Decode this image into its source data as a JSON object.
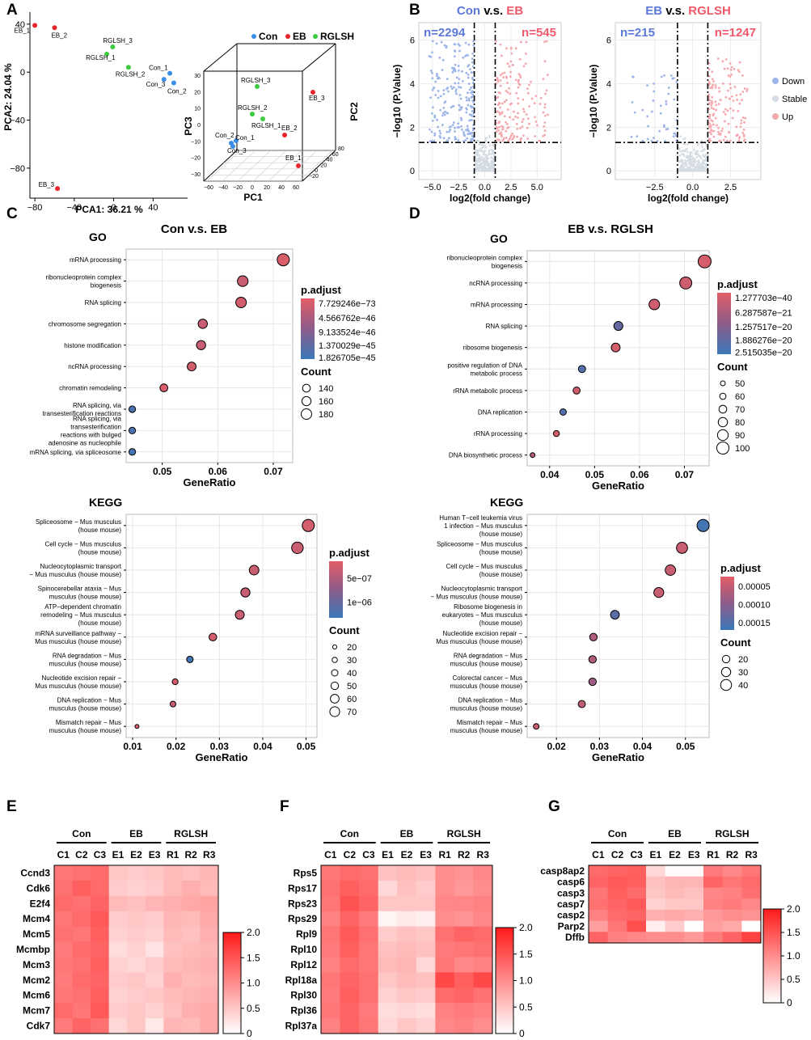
{
  "panel_labels": [
    "A",
    "B",
    "C",
    "D",
    "E",
    "F",
    "G"
  ],
  "chart_data": [
    {
      "id": "pca2d",
      "type": "scatter",
      "title": "",
      "xlabel": "PCA1: 36.21 %",
      "ylabel": "PCA2: 24.04 %",
      "xticks": [
        -80,
        -40,
        0,
        40
      ],
      "yticks": [
        40,
        0,
        -40,
        -80
      ],
      "xlim": [
        -85,
        75
      ],
      "ylim": [
        -105,
        50
      ],
      "points": [
        {
          "label": "EB_1",
          "x": -80,
          "y": 39,
          "group": "EB"
        },
        {
          "label": "EB_2",
          "x": -60,
          "y": 37,
          "group": "EB"
        },
        {
          "label": "EB_3",
          "x": -57,
          "y": -97,
          "group": "EB"
        },
        {
          "label": "RGLSH_3",
          "x": -1,
          "y": 21,
          "group": "RGLSH"
        },
        {
          "label": "RGLSH_1",
          "x": -7,
          "y": 15,
          "group": "RGLSH"
        },
        {
          "label": "RGLSH_2",
          "x": 15,
          "y": 4,
          "group": "RGLSH"
        },
        {
          "label": "Con_1",
          "x": 57,
          "y": -1,
          "group": "Con"
        },
        {
          "label": "Con_3",
          "x": 51,
          "y": -6,
          "group": "Con"
        },
        {
          "label": "Con_2",
          "x": 61,
          "y": -9,
          "group": "Con"
        }
      ]
    },
    {
      "id": "pca3d",
      "type": "scatter",
      "title": "",
      "axis_labels": [
        "PC1",
        "PC2",
        "PC3"
      ],
      "pc1_ticks": [
        "−60",
        "−40",
        "−20",
        "0",
        "20",
        "40",
        "60"
      ],
      "pc3_ticks": [
        "30",
        "20",
        "10",
        "0",
        "−10",
        "−20",
        "−30"
      ],
      "pc2_ticks": [
        "80",
        "60",
        "40",
        "20",
        "0",
        "−20"
      ],
      "legend": [
        {
          "name": "Con",
          "color": "#3a8ee6"
        },
        {
          "name": "EB",
          "color": "#e8262d"
        },
        {
          "name": "RGLSH",
          "color": "#3ec93e"
        }
      ],
      "points": [
        {
          "label": "RGLSH_3",
          "group": "RGLSH"
        },
        {
          "label": "EB_3",
          "group": "EB"
        },
        {
          "label": "RGLSH_2",
          "group": "RGLSH"
        },
        {
          "label": "RGLSH_1",
          "group": "RGLSH"
        },
        {
          "label": "EB_2",
          "group": "EB"
        },
        {
          "label": "Con_2",
          "group": "Con"
        },
        {
          "label": "Con_1",
          "group": "Con"
        },
        {
          "label": "Con_3",
          "group": "Con"
        },
        {
          "label": "EB_1",
          "group": "EB"
        }
      ]
    },
    {
      "id": "volcano1",
      "type": "scatter",
      "title_a": "Con",
      "title_mid": " v.s. ",
      "title_b": "EB",
      "xlabel": "log2(fold change)",
      "ylabel": "−log10 (P.Value)",
      "xticks": [
        "−5.0",
        "−2.5",
        "0.0",
        "2.5",
        "5.0"
      ],
      "yticks": [
        "0",
        "2",
        "4",
        "6"
      ],
      "xlim": [
        -6.3,
        7.3
      ],
      "ylim": [
        -0.4,
        6.8
      ],
      "n_down": "n=2294",
      "n_up": "n=545",
      "vlines": [
        -1,
        1
      ],
      "hline": 1.3
    },
    {
      "id": "volcano2",
      "type": "scatter",
      "title_a": "EB",
      "title_mid": " v.s. ",
      "title_b": "RGLSH",
      "xlabel": "log2(fold change)",
      "ylabel": "−log10 (P.Value)",
      "xticks": [
        "−2.5",
        "0.0",
        "2.5"
      ],
      "yticks": [
        "0",
        "2",
        "4",
        "6"
      ],
      "xlim": [
        -5.1,
        4.5
      ],
      "ylim": [
        -0.4,
        6.8
      ],
      "n_down": "n=215",
      "n_up": "n=1247",
      "vlines": [
        -1,
        1
      ],
      "hline": 1.3,
      "legend": [
        {
          "name": "Down",
          "color": "#9db5e8"
        },
        {
          "name": "Stable",
          "color": "#d4dbe3"
        },
        {
          "name": "Up",
          "color": "#f4a9ae"
        }
      ]
    },
    {
      "id": "go_c",
      "type": "scatter",
      "panel_title": "Con v.s. EB",
      "section": "GO",
      "xlabel": "GeneRatio",
      "xticks": [
        "0.05",
        "0.06",
        "0.07"
      ],
      "xlim": [
        0.0435,
        0.0735
      ],
      "terms": [
        "mRNA processing",
        "ribonucleoprotein complex\nbiogenesis",
        "RNA splicing",
        "chromosome segregation",
        "histone modification",
        "ncRNA processing",
        "chromatin remodeling",
        "RNA splicing, via\ntransesterification reactions",
        "RNA splicing, via\ntransesterification\nreactions with bulged\nadenosine as nucleophile",
        "mRNA splicing, via spliceosome"
      ],
      "x": [
        0.0718,
        0.0645,
        0.0642,
        0.0573,
        0.057,
        0.0553,
        0.0503,
        0.0446,
        0.0446,
        0.0446
      ],
      "padj": [
        0.05,
        0.15,
        0.1,
        0.15,
        0.15,
        0.1,
        0.05,
        0.9,
        0.9,
        0.95
      ],
      "count": [
        205,
        183,
        181,
        162,
        161,
        155,
        140,
        123,
        123,
        123
      ],
      "legend_title": "p.adjust",
      "legend_labels": [
        "7.729246e−73",
        "4.566762e−46",
        "9.133524e−46",
        "1.370029e−45",
        "1.826705e−45"
      ],
      "count_title": "Count",
      "count_labels": [
        "140",
        "160",
        "180"
      ],
      "count_values": [
        140,
        160,
        180
      ]
    },
    {
      "id": "kegg_c",
      "type": "scatter",
      "section": "KEGG",
      "xlabel": "GeneRatio",
      "xticks": [
        "0.01",
        "0.02",
        "0.03",
        "0.04",
        "0.05"
      ],
      "xlim": [
        0.0085,
        0.0525
      ],
      "terms": [
        "Spliceosome − Mus musculus\n(house mouse)",
        "Cell cycle − Mus musculus\n(house mouse)",
        "Nucleocytoplasmic transport\n− Mus musculus (house mouse)",
        "Spinocerebellar ataxia − Mus\nmusculus (house mouse)",
        "ATP−dependent chromatin\nremodeling − Mus musculus\n(house mouse)",
        "mRNA surveillance pathway −\nMus musculus (house mouse)",
        "RNA degradation − Mus\nmusculus (house mouse)",
        "Nucleotide excision repair −\nMus musculus (house mouse)",
        "DNA replication − Mus\nmusculus (house mouse)",
        "Mismatch repair − Mus\nmusculus (house mouse)"
      ],
      "x": [
        0.0505,
        0.048,
        0.038,
        0.036,
        0.0347,
        0.0285,
        0.0232,
        0.0198,
        0.0193,
        0.011
      ],
      "padj": [
        0.1,
        0.15,
        0.15,
        0.15,
        0.15,
        0.1,
        0.95,
        0.1,
        0.15,
        0.1
      ],
      "count": [
        90,
        85,
        68,
        64,
        62,
        51,
        41,
        35,
        34,
        19
      ],
      "legend_title": "p.adjust",
      "legend_labels": [
        "5e−07",
        "1e−06"
      ],
      "count_title": "Count",
      "count_labels": [
        "20",
        "30",
        "40",
        "50",
        "60",
        "70"
      ],
      "count_values": [
        20,
        30,
        40,
        50,
        60,
        70
      ]
    },
    {
      "id": "go_d",
      "type": "scatter",
      "panel_title": "EB v.s. RGLSH",
      "section": "GO",
      "xlabel": "GeneRatio",
      "xticks": [
        "0.04",
        "0.05",
        "0.06",
        "0.07"
      ],
      "xlim": [
        0.035,
        0.0755
      ],
      "terms": [
        "ribonucleoprotein complex\nbiogenesis",
        "ncRNA processing",
        "mRNA processing",
        "RNA splicing",
        "ribosome biogenesis",
        "positive regulation of DNA\nmetabolic process",
        "rRNA metabolic process",
        "DNA replication",
        "rRNA processing",
        "DNA biosynthetic process"
      ],
      "x": [
        0.0745,
        0.0703,
        0.0633,
        0.0553,
        0.0547,
        0.0472,
        0.046,
        0.043,
        0.0415,
        0.0362
      ],
      "padj": [
        0.08,
        0.12,
        0.12,
        0.75,
        0.1,
        0.85,
        0.1,
        0.85,
        0.1,
        0.3
      ],
      "count": [
        105,
        99,
        89,
        78,
        77,
        66,
        65,
        61,
        58,
        50
      ],
      "legend_title": "p.adjust",
      "legend_labels": [
        "1.277703e−40",
        "6.287587e−21",
        "1.257517e−20",
        "1.886276e−20",
        "2.515035e−20"
      ],
      "count_title": "Count",
      "count_labels": [
        "50",
        "60",
        "70",
        "80",
        "90",
        "100"
      ],
      "count_values": [
        50,
        60,
        70,
        80,
        90,
        100
      ]
    },
    {
      "id": "kegg_d",
      "type": "scatter",
      "section": "KEGG",
      "xlabel": "GeneRatio",
      "xticks": [
        "0.02",
        "0.03",
        "0.04",
        "0.05"
      ],
      "xlim": [
        0.0132,
        0.0555
      ],
      "terms": [
        "Human T−cell leukemia virus\n1 infection − Mus musculus\n(house mouse)",
        "Spliceosome − Mus musculus\n(house mouse)",
        "Cell cycle − Mus musculus\n(house mouse)",
        "Nucleocytoplasmic transport\n− Mus musculus (house mouse)",
        "Ribosome biogenesis in\neukaryotes − Mus musculus\n(house mouse)",
        "Nucleotide excision repair −\nMus musculus (house mouse)",
        "RNA degradation − Mus\nmusculus (house mouse)",
        "Colorectal cancer − Mus\nmusculus (house mouse)",
        "DNA replication − Mus\nmusculus (house mouse)",
        "Mismatch repair − Mus\nmusculus (house mouse)"
      ],
      "x": [
        0.0541,
        0.0492,
        0.0465,
        0.0438,
        0.0336,
        0.0286,
        0.0284,
        0.0284,
        0.0259,
        0.0153
      ],
      "padj": [
        0.95,
        0.15,
        0.15,
        0.15,
        0.8,
        0.3,
        0.3,
        0.4,
        0.2,
        0.15
      ],
      "count": [
        47,
        41,
        37,
        34,
        27,
        20,
        20,
        20,
        18,
        9
      ],
      "legend_title": "p.adjust",
      "legend_labels": [
        "0.00005",
        "0.00010",
        "0.00015"
      ],
      "count_title": "Count",
      "count_labels": [
        "20",
        "30",
        "40"
      ],
      "count_values": [
        20,
        30,
        40
      ]
    },
    {
      "id": "heat_e",
      "type": "heatmap",
      "groups": [
        "Con",
        "EB",
        "RGLSH"
      ],
      "columns": [
        "C1",
        "C2",
        "C3",
        "E1",
        "E2",
        "E3",
        "R1",
        "R2",
        "R3"
      ],
      "rows": [
        "Ccnd3",
        "Cdk6",
        "E2f4",
        "Mcm4",
        "Mcm5",
        "Mcmbp",
        "Mcm3",
        "Mcm2",
        "Mcm6",
        "Mcm7",
        "Cdk7"
      ],
      "values": [
        [
          1.2,
          1.25,
          1.3,
          0.5,
          0.45,
          0.5,
          0.6,
          0.55,
          0.65
        ],
        [
          1.25,
          1.4,
          1.3,
          0.45,
          0.4,
          0.45,
          0.6,
          0.7,
          0.6
        ],
        [
          1.3,
          1.25,
          1.35,
          0.6,
          0.55,
          0.65,
          0.7,
          0.75,
          0.8
        ],
        [
          1.2,
          1.3,
          1.45,
          0.45,
          0.5,
          0.45,
          0.65,
          0.6,
          0.75
        ],
        [
          1.25,
          1.2,
          1.4,
          0.4,
          0.45,
          0.4,
          0.6,
          0.55,
          0.7
        ],
        [
          1.15,
          1.3,
          1.35,
          0.3,
          0.4,
          0.25,
          0.55,
          0.6,
          0.65
        ],
        [
          1.2,
          1.25,
          1.4,
          0.4,
          0.35,
          0.45,
          0.6,
          0.65,
          0.7
        ],
        [
          1.15,
          1.3,
          1.35,
          0.45,
          0.5,
          0.4,
          0.7,
          0.6,
          0.65
        ],
        [
          1.2,
          1.25,
          1.4,
          0.4,
          0.45,
          0.5,
          0.6,
          0.65,
          0.7
        ],
        [
          1.3,
          1.2,
          1.45,
          0.45,
          0.5,
          0.4,
          0.55,
          0.7,
          0.75
        ],
        [
          1.15,
          1.35,
          1.25,
          0.35,
          0.5,
          0.2,
          0.65,
          0.6,
          0.75
        ]
      ],
      "scale_ticks": [
        "2.0",
        "1.5",
        "1.0",
        "0.5",
        "0"
      ]
    },
    {
      "id": "heat_f",
      "type": "heatmap",
      "groups": [
        "Con",
        "EB",
        "RGLSH"
      ],
      "columns": [
        "C1",
        "C2",
        "C3",
        "E1",
        "E2",
        "E3",
        "R1",
        "R2",
        "R3"
      ],
      "rows": [
        "Rps5",
        "Rps17",
        "Rps23",
        "Rps29",
        "Rpl9",
        "Rpl10",
        "Rpl12",
        "Rpl18a",
        "Rpl30",
        "Rpl36",
        "Rpl37a"
      ],
      "values": [
        [
          1.2,
          1.3,
          1.25,
          0.55,
          0.6,
          0.55,
          1.0,
          0.95,
          1.05
        ],
        [
          1.25,
          1.4,
          1.3,
          0.35,
          0.55,
          0.45,
          1.0,
          0.9,
          1.0
        ],
        [
          1.2,
          1.5,
          1.35,
          0.5,
          0.5,
          0.5,
          1.05,
          1.05,
          1.1
        ],
        [
          1.1,
          1.35,
          1.15,
          0.1,
          0.2,
          0.15,
          1.0,
          0.95,
          1.05
        ],
        [
          1.2,
          1.45,
          1.25,
          0.45,
          0.55,
          0.5,
          1.25,
          1.35,
          1.3
        ],
        [
          1.15,
          1.4,
          1.2,
          0.55,
          0.6,
          0.55,
          1.15,
          1.2,
          1.25
        ],
        [
          1.1,
          1.3,
          1.2,
          0.6,
          0.65,
          0.35,
          1.2,
          1.05,
          1.1
        ],
        [
          1.2,
          1.35,
          1.25,
          0.5,
          0.6,
          0.55,
          1.6,
          1.4,
          1.6
        ],
        [
          1.15,
          1.4,
          1.25,
          0.4,
          0.5,
          0.45,
          1.3,
          1.35,
          1.25
        ],
        [
          1.2,
          1.35,
          1.15,
          0.3,
          0.35,
          0.3,
          1.1,
          1.15,
          1.1
        ],
        [
          1.1,
          1.35,
          1.2,
          0.35,
          0.5,
          0.4,
          1.05,
          1.1,
          1.0
        ]
      ],
      "scale_ticks": [
        "2.0",
        "1.5",
        "1.0",
        "0.5",
        "0"
      ]
    },
    {
      "id": "heat_g",
      "type": "heatmap",
      "groups": [
        "Con",
        "EB",
        "RGLSH"
      ],
      "columns": [
        "C1",
        "C2",
        "C3",
        "E1",
        "E2",
        "E3",
        "R1",
        "R2",
        "R3"
      ],
      "rows": [
        "casp8ap2",
        "casp6",
        "casp3",
        "casp7",
        "casp2",
        "Parp2",
        "Dffb"
      ],
      "values": [
        [
          1.3,
          1.35,
          1.4,
          0.35,
          0.05,
          0.05,
          1.15,
          1.05,
          1.2
        ],
        [
          1.35,
          1.45,
          1.4,
          0.55,
          0.65,
          0.65,
          1.35,
          1.2,
          1.3
        ],
        [
          1.2,
          1.4,
          1.3,
          0.5,
          0.6,
          0.55,
          1.05,
          1.1,
          1.25
        ],
        [
          1.25,
          1.35,
          1.45,
          0.4,
          0.5,
          0.5,
          1.1,
          1.15,
          1.05
        ],
        [
          1.1,
          1.3,
          1.35,
          0.7,
          0.75,
          0.7,
          0.9,
          1.0,
          0.95
        ],
        [
          0.85,
          1.2,
          1.55,
          0.15,
          0.45,
          0.02,
          0.85,
          0.75,
          0.02
        ],
        [
          1.35,
          1.1,
          1.05,
          1.0,
          1.0,
          0.9,
          1.15,
          1.35,
          1.65
        ]
      ],
      "scale_ticks": [
        "2.0",
        "1.5",
        "1.0",
        "0.5",
        "0"
      ]
    }
  ]
}
